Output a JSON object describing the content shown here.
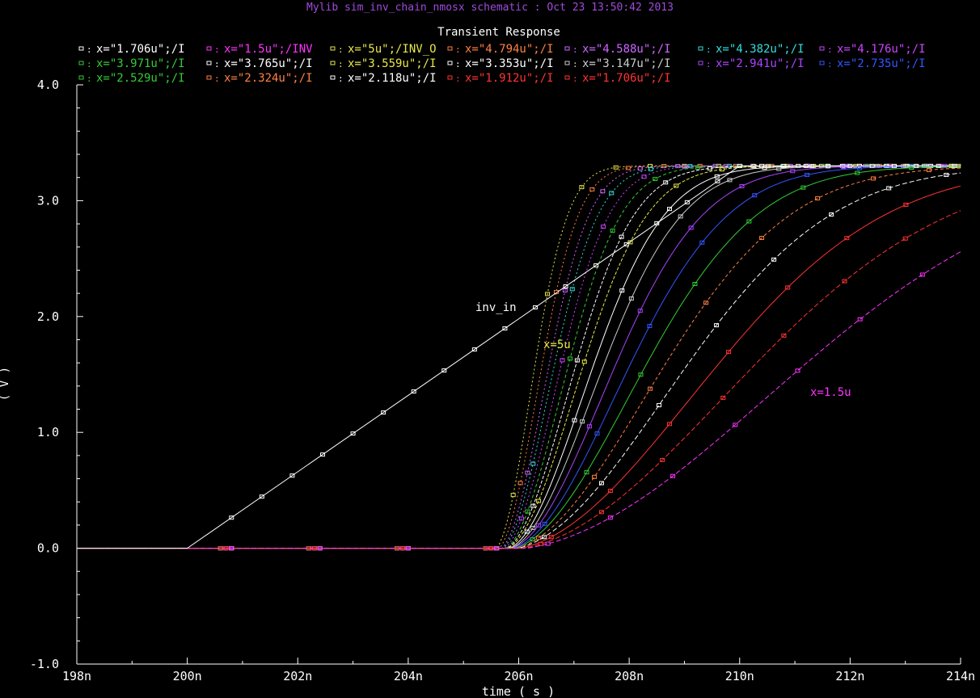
{
  "header": {
    "title": "Mylib sim_inv_chain_nmosx schematic : Oct 23 13:50:42 2013",
    "subtitle": "Transient Response"
  },
  "legend": {
    "rows": [
      [
        {
          "text": "x=\"1.706u\";/I",
          "color": "#ffffff"
        },
        {
          "text": "x=\"1.5u\";/INV",
          "color": "#ff33ff"
        },
        {
          "text": "x=\"5u\";/INV_O",
          "color": "#e8e84a"
        },
        {
          "text": "x=\"4.794u\";/I",
          "color": "#ff8040"
        },
        {
          "text": "x=\"4.588u\";/I",
          "color": "#cc66ff"
        },
        {
          "text": "x=\"4.382u\";/I",
          "color": "#33dddd"
        },
        {
          "text": "x=\"4.176u\";/I",
          "color": "#cc44ff"
        }
      ],
      [
        {
          "text": "x=\"3.971u\";/I",
          "color": "#33cc33"
        },
        {
          "text": "x=\"3.765u\";/I",
          "color": "#ffffff"
        },
        {
          "text": "x=\"3.559u\";/I",
          "color": "#e8e84a"
        },
        {
          "text": "x=\"3.353u\";/I",
          "color": "#ffffff"
        },
        {
          "text": "x=\"3.147u\";/I",
          "color": "#cccccc"
        },
        {
          "text": "x=\"2.941u\";/I",
          "color": "#aa44ff"
        },
        {
          "text": "x=\"2.735u\";/I",
          "color": "#3355ff"
        }
      ],
      [
        {
          "text": "x=\"2.529u\";/I",
          "color": "#33cc33"
        },
        {
          "text": "x=\"2.324u\";/I",
          "color": "#ff8040"
        },
        {
          "text": "x=\"2.118u\";/I",
          "color": "#ffffff"
        },
        {
          "text": "x=\"1.912u\";/I",
          "color": "#ff3333"
        },
        {
          "text": "x=\"1.706u\";/I",
          "color": "#ff3333"
        }
      ]
    ]
  },
  "annotations": {
    "inv_in": "inv_in",
    "x5u": "x=5u",
    "x15u": "x=1.5u"
  },
  "chart_data": {
    "type": "line",
    "title": "Transient Response",
    "xlabel": "time ( s )",
    "ylabel": "( V )",
    "xlim": [
      198,
      214
    ],
    "ylim": [
      -1.0,
      4.0
    ],
    "x_unit": "n",
    "x_ticks": [
      "198n",
      "200n",
      "202n",
      "204n",
      "206n",
      "208n",
      "210n",
      "212n",
      "214n"
    ],
    "y_ticks": [
      "-1.0",
      "0.0",
      "1.0",
      "2.0",
      "3.0",
      "4.0"
    ],
    "grid": false,
    "input": {
      "name": "inv_in",
      "color": "#ffffff",
      "x": [
        198,
        200,
        210,
        214
      ],
      "y": [
        0.0,
        0.0,
        3.3,
        3.3
      ]
    },
    "series": [
      {
        "color": "#e8e84a",
        "dash": "2,3",
        "x0": 205.6,
        "tau": 0.9
      },
      {
        "color": "#ff8040",
        "dash": "2,3",
        "x0": 205.65,
        "tau": 1.0
      },
      {
        "color": "#cc66ff",
        "dash": "2,3",
        "x0": 205.7,
        "tau": 1.1
      },
      {
        "color": "#33dddd",
        "dash": "2,3",
        "x0": 205.72,
        "tau": 1.2
      },
      {
        "color": "#cc44ff",
        "dash": "2,3",
        "x0": 205.75,
        "tau": 1.32
      },
      {
        "color": "#33cc33",
        "dash": "4,3",
        "x0": 205.78,
        "tau": 1.45
      },
      {
        "color": "#ffffff",
        "dash": "4,2",
        "x0": 205.8,
        "tau": 1.6
      },
      {
        "color": "#e8e84a",
        "dash": "4,2",
        "x0": 205.82,
        "tau": 1.75
      },
      {
        "color": "#ffffff",
        "dash": "",
        "x0": 205.85,
        "tau": 1.95
      },
      {
        "color": "#cccccc",
        "dash": "",
        "x0": 205.88,
        "tau": 2.15
      },
      {
        "color": "#aa44ff",
        "dash": "",
        "x0": 205.9,
        "tau": 2.4
      },
      {
        "color": "#3355ff",
        "dash": "",
        "x0": 205.93,
        "tau": 2.7
      },
      {
        "color": "#33cc33",
        "dash": "",
        "x0": 205.95,
        "tau": 3.05
      },
      {
        "color": "#ff8040",
        "dash": "4,3",
        "x0": 205.98,
        "tau": 3.45
      },
      {
        "color": "#ffffff",
        "dash": "6,3",
        "x0": 206.0,
        "tau": 3.95
      },
      {
        "color": "#ff3333",
        "dash": "",
        "x0": 206.05,
        "tau": 4.6
      },
      {
        "color": "#ff3333",
        "dash": "6,3",
        "x0": 206.1,
        "tau": 5.4
      },
      {
        "color": "#ff33ff",
        "dash": "6,3",
        "x0": 206.15,
        "tau": 6.5
      }
    ],
    "vdd": 3.3
  }
}
